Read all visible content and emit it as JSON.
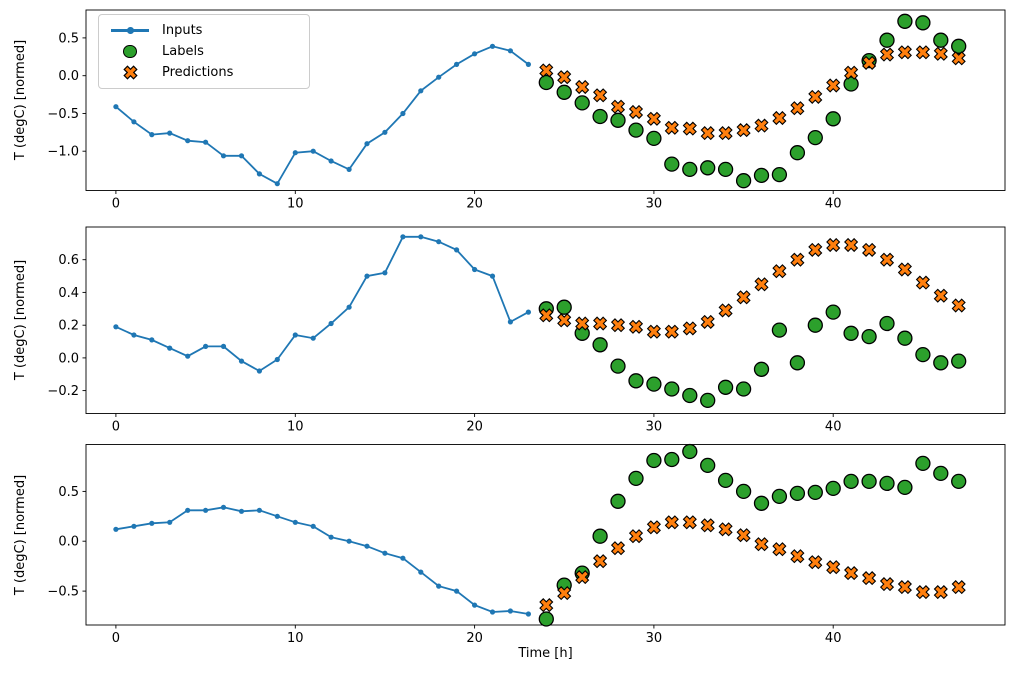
{
  "figure": {
    "xlabel": "Time [h]",
    "ylabel": "T (degC) [normed]",
    "background": "#ffffff",
    "legend": [
      {
        "label": "Inputs",
        "marker": "line-dot",
        "color": "#1f77b4"
      },
      {
        "label": "Labels",
        "marker": "circle",
        "color": "#2ca02c"
      },
      {
        "label": "Predictions",
        "marker": "x",
        "color": "#ff7f0e"
      }
    ],
    "marker_edge_color": "#000000"
  },
  "chart_data": [
    {
      "type": "line",
      "ylabel": "T (degC) [normed]",
      "xlabel": "",
      "grid": false,
      "legend_position": "upper left",
      "xlim": [
        -1.67,
        49.58
      ],
      "ylim": [
        -1.52,
        0.87
      ],
      "xticks": [
        0,
        10,
        20,
        30,
        40
      ],
      "xtick_labels": [
        "0",
        "10",
        "20",
        "30",
        "40"
      ],
      "yticks": [
        0.5,
        0.0,
        -0.5,
        -1.0
      ],
      "ytick_labels": [
        "0.5",
        "0.0",
        "−0.5",
        "−1.0"
      ],
      "series": [
        {
          "name": "Inputs",
          "type": "line",
          "color": "#1f77b4",
          "x": [
            0,
            1,
            2,
            3,
            4,
            5,
            6,
            7,
            8,
            9,
            10,
            11,
            12,
            13,
            14,
            15,
            16,
            17,
            18,
            19,
            20,
            21,
            22,
            23
          ],
          "y": [
            -0.41,
            -0.61,
            -0.78,
            -0.76,
            -0.86,
            -0.88,
            -1.06,
            -1.06,
            -1.3,
            -1.43,
            -1.02,
            -1.0,
            -1.13,
            -1.24,
            -0.9,
            -0.75,
            -0.5,
            -0.2,
            -0.02,
            0.15,
            0.29,
            0.39,
            0.33,
            0.15
          ]
        },
        {
          "name": "Labels",
          "type": "scatter-circle",
          "color": "#2ca02c",
          "edge": "#000000",
          "x": [
            24,
            25,
            26,
            27,
            28,
            29,
            30,
            31,
            32,
            33,
            34,
            35,
            36,
            37,
            38,
            39,
            40,
            41,
            42,
            43,
            44,
            45,
            46,
            47
          ],
          "y": [
            -0.09,
            -0.22,
            -0.36,
            -0.54,
            -0.59,
            -0.72,
            -0.83,
            -1.17,
            -1.24,
            -1.22,
            -1.24,
            -1.39,
            -1.32,
            -1.31,
            -1.02,
            -0.82,
            -0.57,
            -0.11,
            0.2,
            0.47,
            0.72,
            0.7,
            0.47,
            0.39
          ]
        },
        {
          "name": "Predictions",
          "type": "scatter-x",
          "color": "#ff7f0e",
          "edge": "#000000",
          "x": [
            24,
            25,
            26,
            27,
            28,
            29,
            30,
            31,
            32,
            33,
            34,
            35,
            36,
            37,
            38,
            39,
            40,
            41,
            42,
            43,
            44,
            45,
            46,
            47
          ],
          "y": [
            0.07,
            -0.02,
            -0.15,
            -0.26,
            -0.41,
            -0.48,
            -0.57,
            -0.69,
            -0.7,
            -0.76,
            -0.76,
            -0.72,
            -0.66,
            -0.56,
            -0.43,
            -0.28,
            -0.13,
            0.04,
            0.17,
            0.28,
            0.31,
            0.31,
            0.29,
            0.23
          ]
        }
      ]
    },
    {
      "type": "line",
      "ylabel": "T (degC) [normed]",
      "xlabel": "",
      "grid": false,
      "xlim": [
        -1.67,
        49.58
      ],
      "ylim": [
        -0.34,
        0.8
      ],
      "xticks": [
        0,
        10,
        20,
        30,
        40
      ],
      "xtick_labels": [
        "0",
        "10",
        "20",
        "30",
        "40"
      ],
      "yticks": [
        0.6,
        0.4,
        0.2,
        0.0,
        -0.2
      ],
      "ytick_labels": [
        "0.6",
        "0.4",
        "0.2",
        "0.0",
        "−0.2"
      ],
      "series": [
        {
          "name": "Inputs",
          "type": "line",
          "color": "#1f77b4",
          "x": [
            0,
            1,
            2,
            3,
            4,
            5,
            6,
            7,
            8,
            9,
            10,
            11,
            12,
            13,
            14,
            15,
            16,
            17,
            18,
            19,
            20,
            21,
            22,
            23
          ],
          "y": [
            0.19,
            0.14,
            0.11,
            0.06,
            0.01,
            0.07,
            0.07,
            -0.02,
            -0.08,
            -0.01,
            0.14,
            0.12,
            0.21,
            0.31,
            0.5,
            0.52,
            0.74,
            0.74,
            0.71,
            0.66,
            0.54,
            0.5,
            0.22,
            0.28
          ]
        },
        {
          "name": "Labels",
          "type": "scatter-circle",
          "color": "#2ca02c",
          "edge": "#000000",
          "x": [
            24,
            25,
            26,
            27,
            28,
            29,
            30,
            31,
            32,
            33,
            34,
            35,
            36,
            37,
            38,
            39,
            40,
            41,
            42,
            43,
            44,
            45,
            46,
            47
          ],
          "y": [
            0.3,
            0.31,
            0.15,
            0.08,
            -0.05,
            -0.14,
            -0.16,
            -0.19,
            -0.23,
            -0.26,
            -0.18,
            -0.19,
            -0.07,
            0.17,
            -0.03,
            0.2,
            0.28,
            0.15,
            0.13,
            0.21,
            0.12,
            0.02,
            -0.03,
            -0.02
          ]
        },
        {
          "name": "Predictions",
          "type": "scatter-x",
          "color": "#ff7f0e",
          "edge": "#000000",
          "x": [
            24,
            25,
            26,
            27,
            28,
            29,
            30,
            31,
            32,
            33,
            34,
            35,
            36,
            37,
            38,
            39,
            40,
            41,
            42,
            43,
            44,
            45,
            46,
            47
          ],
          "y": [
            0.26,
            0.23,
            0.21,
            0.21,
            0.2,
            0.19,
            0.16,
            0.16,
            0.18,
            0.22,
            0.29,
            0.37,
            0.45,
            0.53,
            0.6,
            0.66,
            0.69,
            0.69,
            0.66,
            0.6,
            0.54,
            0.46,
            0.38,
            0.32
          ]
        }
      ]
    },
    {
      "type": "line",
      "ylabel": "T (degC) [normed]",
      "xlabel": "Time [h]",
      "grid": false,
      "xlim": [
        -1.67,
        49.58
      ],
      "ylim": [
        -0.84,
        0.97
      ],
      "xticks": [
        0,
        10,
        20,
        30,
        40
      ],
      "xtick_labels": [
        "0",
        "10",
        "20",
        "30",
        "40"
      ],
      "yticks": [
        0.5,
        0.0,
        -0.5
      ],
      "ytick_labels": [
        "0.5",
        "0.0",
        "−0.5"
      ],
      "series": [
        {
          "name": "Inputs",
          "type": "line",
          "color": "#1f77b4",
          "x": [
            0,
            1,
            2,
            3,
            4,
            5,
            6,
            7,
            8,
            9,
            10,
            11,
            12,
            13,
            14,
            15,
            16,
            17,
            18,
            19,
            20,
            21,
            22,
            23
          ],
          "y": [
            0.12,
            0.15,
            0.18,
            0.19,
            0.31,
            0.31,
            0.34,
            0.3,
            0.31,
            0.25,
            0.19,
            0.15,
            0.04,
            0.0,
            -0.05,
            -0.12,
            -0.17,
            -0.31,
            -0.45,
            -0.5,
            -0.64,
            -0.71,
            -0.7,
            -0.73
          ]
        },
        {
          "name": "Labels",
          "type": "scatter-circle",
          "color": "#2ca02c",
          "edge": "#000000",
          "x": [
            24,
            25,
            26,
            27,
            28,
            29,
            30,
            31,
            32,
            33,
            34,
            35,
            36,
            37,
            38,
            39,
            40,
            41,
            42,
            43,
            44,
            45,
            46,
            47
          ],
          "y": [
            -0.78,
            -0.44,
            -0.32,
            0.05,
            0.4,
            0.63,
            0.81,
            0.82,
            0.9,
            0.76,
            0.61,
            0.5,
            0.38,
            0.45,
            0.48,
            0.49,
            0.53,
            0.6,
            0.6,
            0.58,
            0.54,
            0.78,
            0.68,
            0.6
          ]
        },
        {
          "name": "Predictions",
          "type": "scatter-x",
          "color": "#ff7f0e",
          "edge": "#000000",
          "x": [
            24,
            25,
            26,
            27,
            28,
            29,
            30,
            31,
            32,
            33,
            34,
            35,
            36,
            37,
            38,
            39,
            40,
            41,
            42,
            43,
            44,
            45,
            46,
            47
          ],
          "y": [
            -0.64,
            -0.52,
            -0.36,
            -0.2,
            -0.07,
            0.05,
            0.14,
            0.19,
            0.19,
            0.16,
            0.12,
            0.06,
            -0.03,
            -0.08,
            -0.15,
            -0.21,
            -0.26,
            -0.32,
            -0.37,
            -0.43,
            -0.46,
            -0.51,
            -0.51,
            -0.46
          ]
        }
      ]
    }
  ]
}
